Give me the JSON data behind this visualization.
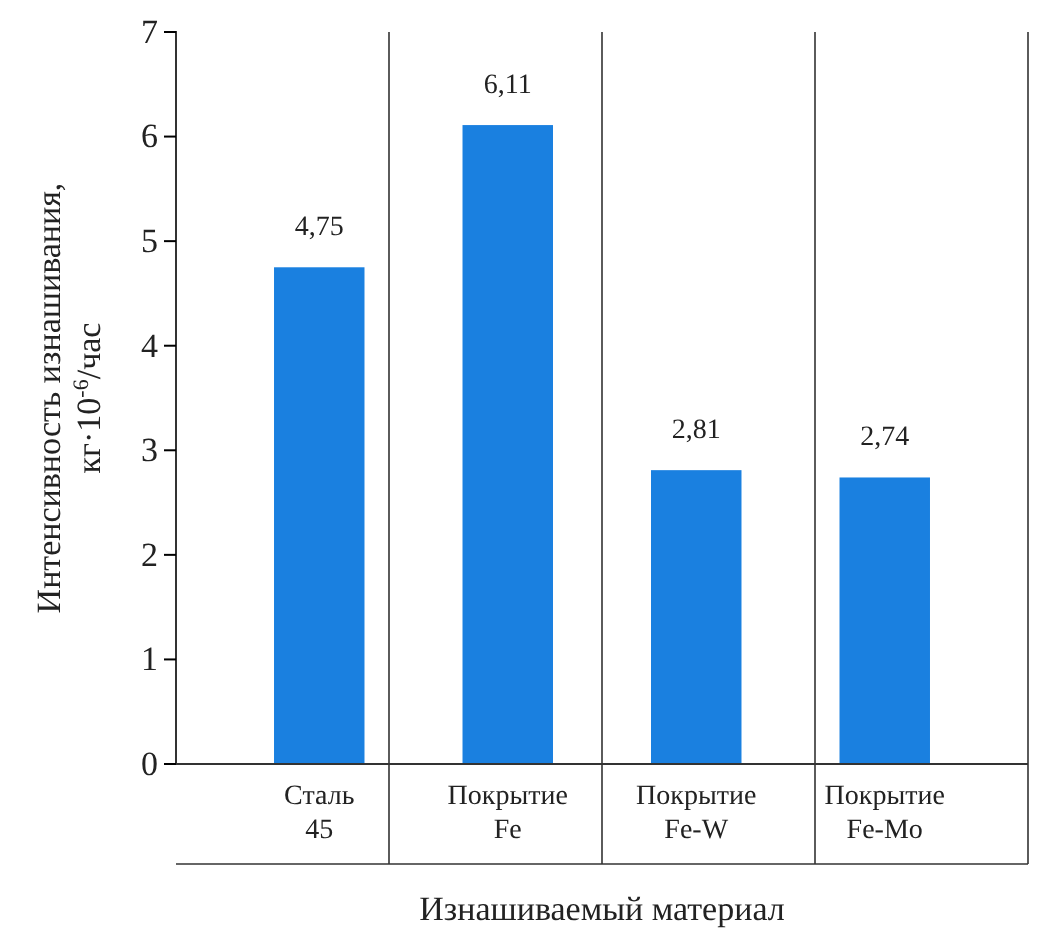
{
  "chart_data": {
    "type": "bar",
    "xlabel": "Изнашиваемый материал",
    "ylabel": "Интенсивность изнашивания, кг·10$^{-6}$/час",
    "categories": [
      "Сталь 45",
      "Покрытие Fe",
      "Покрытие Fe-W",
      "Покрытие Fe-Mo"
    ],
    "values": [
      4.75,
      6.11,
      2.81,
      2.74
    ],
    "value_labels": [
      "4,75",
      "6,11",
      "2,81",
      "2,74"
    ],
    "color": "#1a80e0",
    "ylim": [
      0,
      7
    ],
    "yticks": [
      0,
      1,
      2,
      3,
      4,
      5,
      6,
      7
    ],
    "grid": "x"
  }
}
